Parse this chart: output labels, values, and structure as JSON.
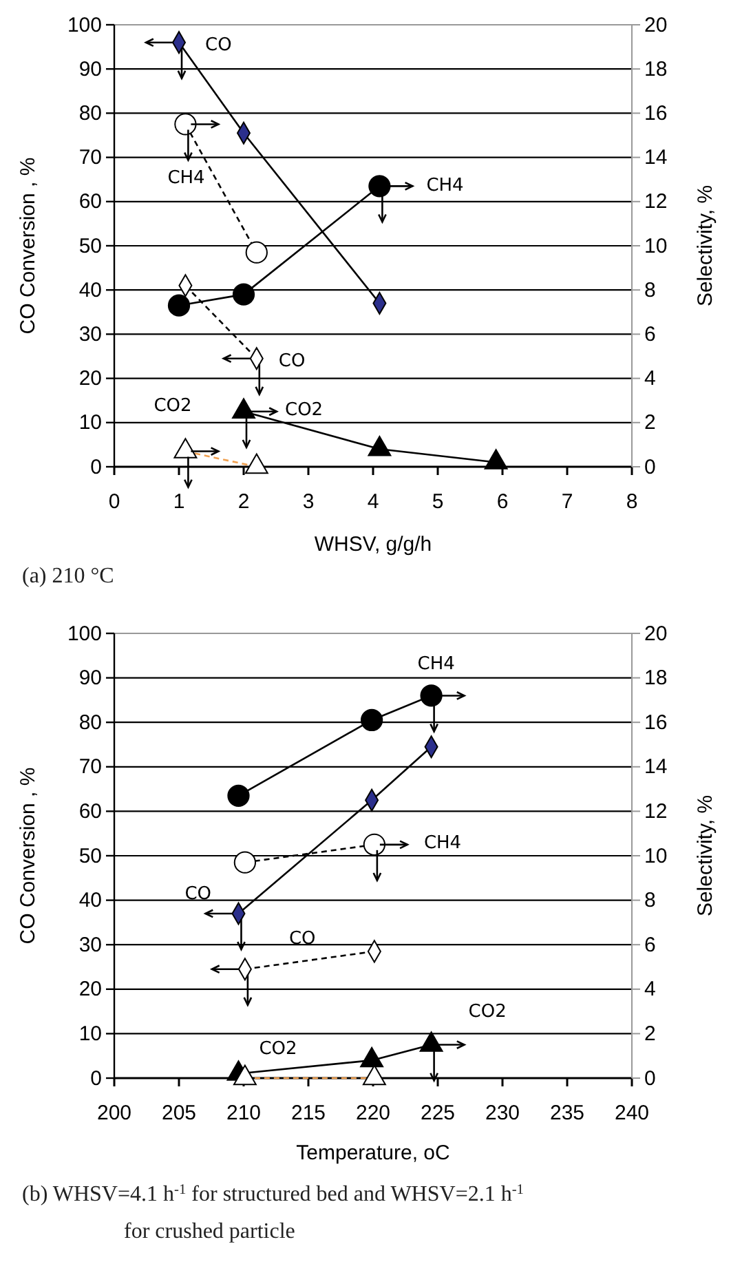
{
  "chart_data": [
    {
      "type": "line",
      "title": "(a) 210 °C",
      "xlabel": "WHSV, g/g/h",
      "ylabel": "CO Conversion , %",
      "y2label": "Selectivity, %",
      "xlim": [
        0,
        8
      ],
      "xticks": [
        0,
        1,
        2,
        3,
        4,
        5,
        6,
        7,
        8
      ],
      "ylim": [
        0,
        100
      ],
      "yticks": [
        0,
        10,
        20,
        30,
        40,
        50,
        60,
        70,
        80,
        90,
        100
      ],
      "y2lim": [
        0,
        20
      ],
      "y2ticks": [
        0,
        2,
        4,
        6,
        8,
        10,
        12,
        14,
        16,
        18,
        20
      ],
      "grid": "y",
      "series": [
        {
          "color": "#000000",
          "colors": [
            "#2b2f8c",
            "#2b2f8c",
            "#2b2f8c"
          ],
          "marker": "diamond",
          "line_style": "solid",
          "x": [
            1.0,
            2.0,
            4.1
          ],
          "values": [
            96,
            75.5,
            37
          ]
        },
        {
          "color": "#000000",
          "colors": [
            "#ffffff",
            "#ffffff"
          ],
          "marker": "diamond",
          "line_style": "dashed",
          "x": [
            1.1,
            2.2
          ],
          "values": [
            41,
            24.5
          ]
        },
        {
          "color": "#000000",
          "colors": [
            "#000000",
            "#000000",
            "#000000"
          ],
          "marker": "circle",
          "line_style": "solid",
          "axis": "y2",
          "x": [
            1.0,
            2.0,
            4.1
          ],
          "values": [
            7.3,
            7.8,
            12.7
          ]
        },
        {
          "color": "#000000",
          "colors": [
            "#ffffff",
            "#ffffff"
          ],
          "marker": "circle",
          "line_style": "dashed",
          "axis": "y2",
          "x": [
            1.1,
            2.2
          ],
          "values": [
            15.5,
            9.7
          ]
        },
        {
          "color": "#000000",
          "colors": [
            "#000000",
            "#000000",
            "#000000"
          ],
          "marker": "triangle",
          "line_style": "solid",
          "axis": "y2",
          "x": [
            2.0,
            4.1,
            5.9
          ],
          "values": [
            2.5,
            0.8,
            0.2
          ]
        },
        {
          "color": "#f0a050",
          "colors": [
            "#ffffff",
            "#ffffff"
          ],
          "marker": "triangle",
          "line_style": "dashed",
          "axis": "y2",
          "x": [
            1.1,
            2.2
          ],
          "values": [
            0.7,
            0
          ]
        }
      ],
      "annotations": [
        {
          "text": "CO",
          "x": 1.0,
          "y": 96
        },
        {
          "text": "CH4",
          "x": 1.1,
          "y": 77.5
        },
        {
          "text": "CH4",
          "x": 4.1,
          "y": 63.5
        },
        {
          "text": "CO",
          "x": 2.2,
          "y": 24.5
        },
        {
          "text": "CO2",
          "x": 2.0,
          "y": 12.5
        },
        {
          "text": "CO2",
          "x": 1.1,
          "y": 3.5
        }
      ]
    },
    {
      "type": "line",
      "title": "(b) WHSV=4.1 h$^{-1}$ for structured bed and WHSV=2.1 h$^{-1}$ for crushed particle",
      "xlabel": "Temperature, oC",
      "ylabel": "CO Conversion , %",
      "y2label": "Selectivity, %",
      "xlim": [
        200,
        240
      ],
      "xticks": [
        200,
        205,
        210,
        215,
        220,
        225,
        230,
        235,
        240
      ],
      "ylim": [
        0,
        100
      ],
      "yticks": [
        0,
        10,
        20,
        30,
        40,
        50,
        60,
        70,
        80,
        90,
        100
      ],
      "y2lim": [
        0,
        20
      ],
      "y2ticks": [
        0,
        2,
        4,
        6,
        8,
        10,
        12,
        14,
        16,
        18,
        20
      ],
      "grid": "y",
      "series": [
        {
          "color": "#000000",
          "colors": [
            "#2b2f8c",
            "#2b2f8c",
            "#2b2f8c"
          ],
          "marker": "diamond",
          "line_style": "solid",
          "x": [
            209.6,
            219.9,
            224.5
          ],
          "values": [
            37,
            62.5,
            74.5
          ]
        },
        {
          "color": "#000000",
          "colors": [
            "#ffffff",
            "#ffffff"
          ],
          "marker": "diamond",
          "line_style": "dashed",
          "x": [
            210.1,
            220.1
          ],
          "values": [
            24.5,
            28.5
          ]
        },
        {
          "color": "#000000",
          "colors": [
            "#000000",
            "#000000",
            "#000000"
          ],
          "marker": "circle",
          "line_style": "solid",
          "axis": "y2",
          "x": [
            209.6,
            219.9,
            224.5
          ],
          "values": [
            12.7,
            16.1,
            17.2
          ]
        },
        {
          "color": "#000000",
          "colors": [
            "#ffffff",
            "#ffffff"
          ],
          "marker": "circle",
          "line_style": "dashed",
          "axis": "y2",
          "x": [
            210.1,
            220.1
          ],
          "values": [
            9.7,
            10.5
          ]
        },
        {
          "color": "#000000",
          "colors": [
            "#000000",
            "#000000",
            "#000000"
          ],
          "marker": "triangle",
          "line_style": "solid",
          "axis": "y2",
          "x": [
            209.6,
            219.9,
            224.5
          ],
          "values": [
            0.2,
            0.8,
            1.5
          ]
        },
        {
          "color": "#f0a050",
          "colors": [
            "#ffffff",
            "#ffffff"
          ],
          "marker": "triangle",
          "line_style": "dashed",
          "axis": "y2",
          "x": [
            210.1,
            220.1
          ],
          "values": [
            0,
            0
          ]
        }
      ],
      "annotations": [
        {
          "text": "CH4",
          "x": 224.5,
          "y": 86
        },
        {
          "text": "CH4",
          "x": 220.1,
          "y": 52.5
        },
        {
          "text": "CO",
          "x": 209.6,
          "y": 37
        },
        {
          "text": "CO",
          "x": 210.1,
          "y": 24.5
        },
        {
          "text": "CO2",
          "x": 224.5,
          "y": 7.5
        },
        {
          "text": "CO2",
          "x": 209.6,
          "y": 1
        }
      ]
    }
  ]
}
